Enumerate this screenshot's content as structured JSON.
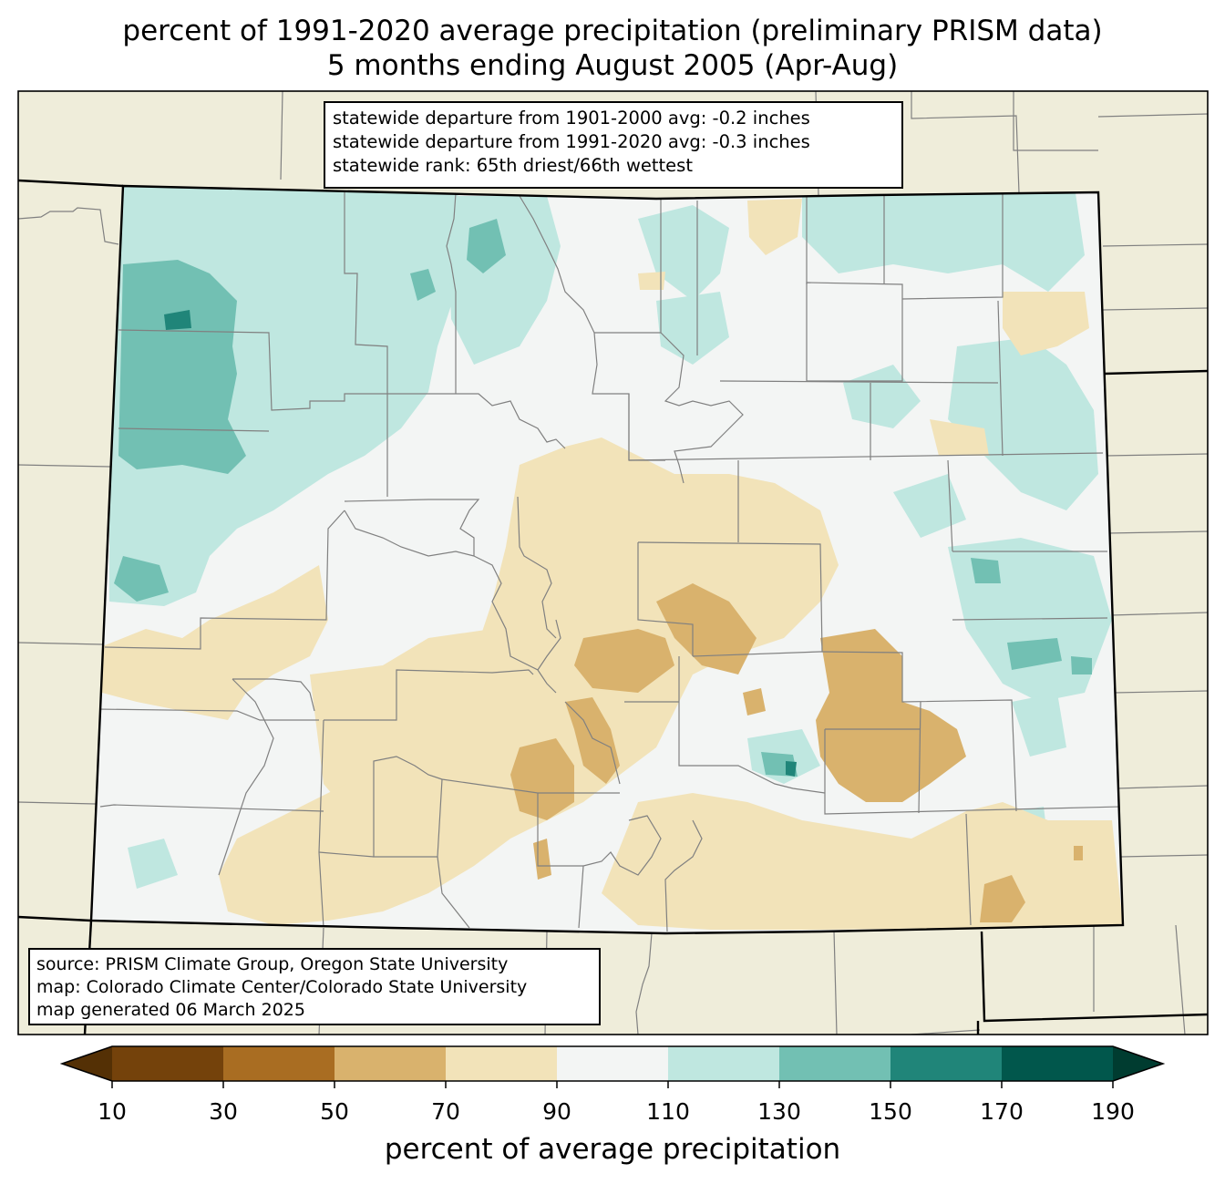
{
  "title": {
    "line1": "percent of 1991-2020 average precipitation (preliminary PRISM data)",
    "line2": "5 months ending August 2005 (Apr-Aug)"
  },
  "stats": [
    "statewide departure from 1901-2000 avg: -0.2 inches",
    "statewide departure from 1991-2020 avg: -0.3 inches",
    "statewide rank: 65th driest/66th wettest"
  ],
  "credits": [
    "source: PRISM Climate Group, Oregon State University",
    "map: Colorado Climate Center/Colorado State University",
    "map generated 06 March 2025"
  ],
  "colorbar": {
    "label": "percent of average precipitation",
    "ticks": [
      "10",
      "30",
      "50",
      "70",
      "90",
      "110",
      "130",
      "150",
      "170",
      "190"
    ],
    "under_color": "#543005",
    "over_color": "#003c30",
    "colors": [
      "#74420b",
      "#a96d22",
      "#d9b26d",
      "#f2e3b9",
      "#f3f5f4",
      "#bfe7e0",
      "#72c0b3",
      "#208579",
      "#01574c"
    ]
  },
  "colors": {
    "map_background": "#efedda",
    "state_border": "#000000",
    "county_border": "#808080"
  }
}
